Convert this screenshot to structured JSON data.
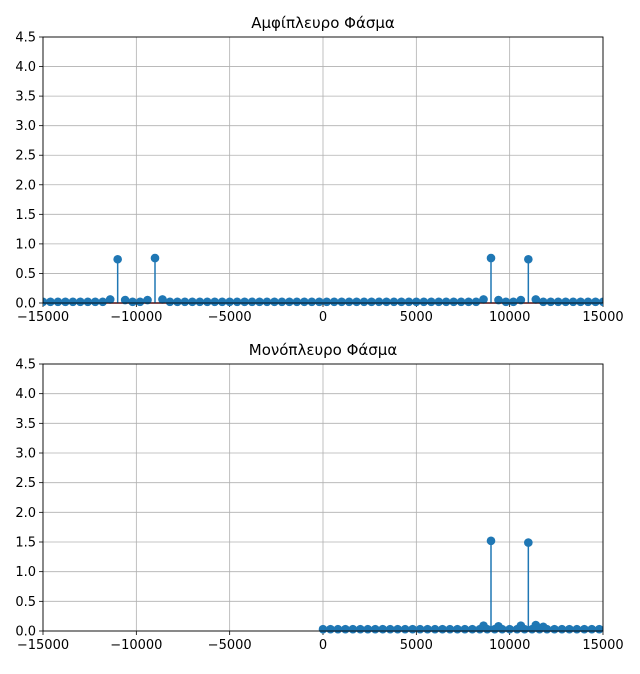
{
  "chart_data": [
    {
      "type": "stem",
      "title": "Αμφίπλευρο Φάσμα",
      "xlabel": "",
      "ylabel": "",
      "xlim": [
        -15000,
        15000
      ],
      "ylim": [
        0,
        4.5
      ],
      "xticks": [
        "−15000",
        "−10000",
        "−5000",
        "0",
        "5000",
        "10000",
        "15000"
      ],
      "yticks": [
        "0.0",
        "0.5",
        "1.0",
        "1.5",
        "2.0",
        "2.5",
        "3.0",
        "3.5",
        "4.0",
        "4.5"
      ],
      "grid": true,
      "stem_color": "#1f77b4",
      "baseline_color": "#d62728",
      "range": [
        -15000,
        15000
      ],
      "step": 400,
      "base_value": 0.02,
      "peaks": [
        {
          "x": -11000,
          "y": 0.74
        },
        {
          "x": -9000,
          "y": 0.76
        },
        {
          "x": 9000,
          "y": 0.76
        },
        {
          "x": 11000,
          "y": 0.74
        }
      ],
      "near_peaks": [
        {
          "x": -11400,
          "y": 0.06
        },
        {
          "x": -10600,
          "y": 0.05
        },
        {
          "x": -9400,
          "y": 0.05
        },
        {
          "x": -8600,
          "y": 0.06
        },
        {
          "x": 8600,
          "y": 0.06
        },
        {
          "x": 9400,
          "y": 0.05
        },
        {
          "x": 10600,
          "y": 0.05
        },
        {
          "x": 11400,
          "y": 0.06
        }
      ]
    },
    {
      "type": "stem",
      "title": "Μονόπλευρο Φάσμα",
      "xlabel": "",
      "ylabel": "",
      "xlim": [
        -15000,
        15000
      ],
      "ylim": [
        0,
        4.5
      ],
      "xticks": [
        "−15000",
        "−10000",
        "−5000",
        "0",
        "5000",
        "10000",
        "15000"
      ],
      "yticks": [
        "0.0",
        "0.5",
        "1.0",
        "1.5",
        "2.0",
        "2.5",
        "3.0",
        "3.5",
        "4.0",
        "4.5"
      ],
      "grid": true,
      "stem_color": "#1f77b4",
      "baseline_color": "#d62728",
      "range": [
        0,
        15000
      ],
      "step": 400,
      "base_value": 0.03,
      "peaks": [
        {
          "x": 9000,
          "y": 1.52
        },
        {
          "x": 11000,
          "y": 1.49
        }
      ],
      "near_peaks": [
        {
          "x": 8600,
          "y": 0.09
        },
        {
          "x": 9400,
          "y": 0.08
        },
        {
          "x": 10600,
          "y": 0.09
        },
        {
          "x": 11400,
          "y": 0.1
        },
        {
          "x": 11800,
          "y": 0.07
        }
      ]
    }
  ]
}
